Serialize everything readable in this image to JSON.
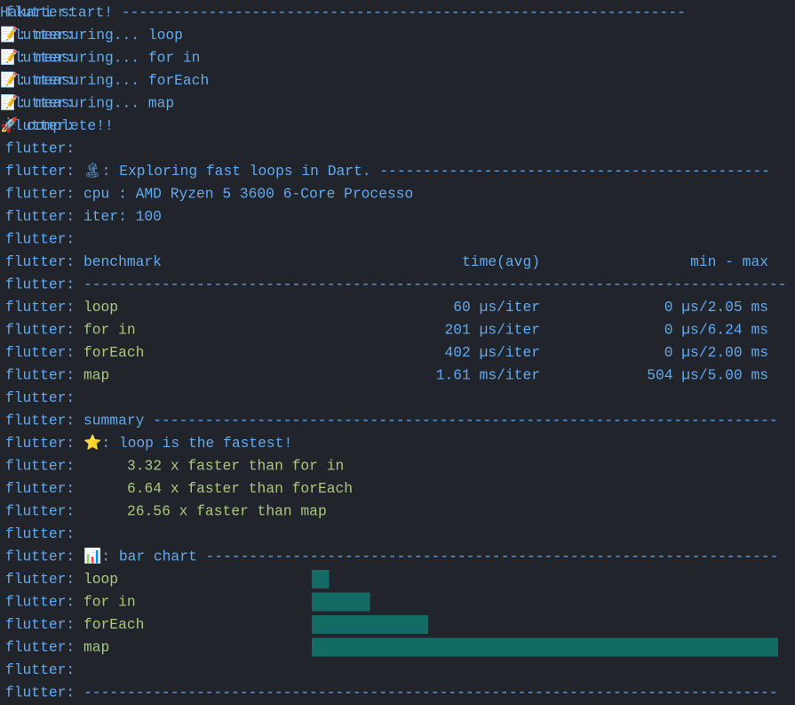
{
  "prefix": "flutter:",
  "log": [
    "Hakari start! -----------------------------------------------------------------",
    "📝: measuring... loop",
    "📝: measuring... for in",
    "📝: measuring... forEach",
    "📝: measuring... map",
    "🚀 complete!!"
  ],
  "header": "🏝: Exploring fast loops in Dart. ---------------------------------------------",
  "cpu": "cpu : AMD Ryzen 5 3600 6-Core Processo",
  "iter": "iter: 100",
  "table": {
    "columns": [
      "benchmark",
      "time(avg)",
      "min - max"
    ],
    "separator": "---------------------------------------------------------------------------------",
    "rows": [
      [
        "loop",
        "60 µs/iter",
        "0 µs/2.05 ms"
      ],
      [
        "for in",
        "201 µs/iter",
        "0 µs/6.24 ms"
      ],
      [
        "forEach",
        "402 µs/iter",
        "0 µs/2.00 ms"
      ],
      [
        "map",
        "1.61 ms/iter",
        "504 µs/5.00 ms"
      ]
    ]
  },
  "summary": {
    "title": "summary ------------------------------------------------------------------------",
    "fastest": "⭐: loop is the fastest!",
    "comparisons": [
      "3.32 x faster than for in",
      "6.64 x faster than forEach",
      "26.56 x faster than map"
    ]
  },
  "bar_chart": {
    "title": "📊: bar chart ------------------------------------------------------------------",
    "bars": [
      {
        "label": "loop",
        "value": 60
      },
      {
        "label": "for in",
        "value": 201
      },
      {
        "label": "forEach",
        "value": 402
      },
      {
        "label": "map",
        "value": 1610
      }
    ]
  },
  "footer": "--------------------------------------------------------------------------------"
}
